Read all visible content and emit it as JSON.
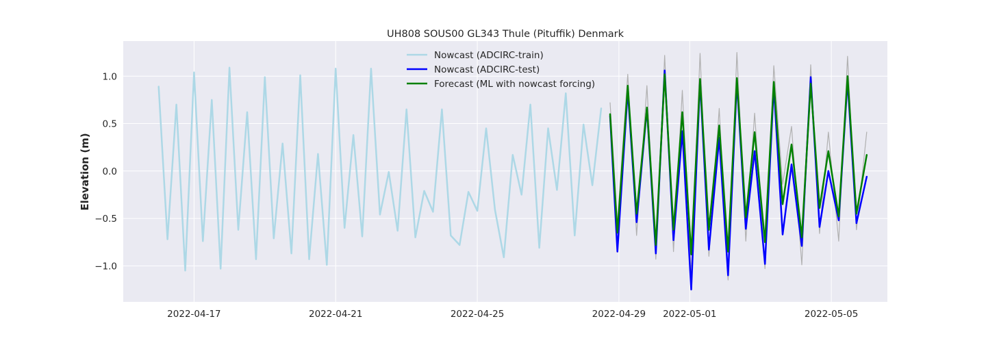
{
  "chart_data": {
    "type": "line",
    "title": "UH808 SOUS00 GL343 Thule (Pituffik) Denmark",
    "xlabel": "",
    "ylabel": "Elevation (m)",
    "xlim": [
      "2022-04-15T00:00",
      "2022-05-06T14:00"
    ],
    "ylim": [
      -1.38,
      1.37
    ],
    "grid": true,
    "legend_position": "top-center",
    "x_ticks": [
      "2022-04-17",
      "2022-04-21",
      "2022-04-25",
      "2022-04-29",
      "2022-05-01",
      "2022-05-05"
    ],
    "y_ticks": [
      -1.0,
      -0.5,
      0.0,
      0.5,
      1.0
    ],
    "y_tick_labels": [
      "−1.0",
      "−0.5",
      "0.0",
      "0.5",
      "1.0"
    ],
    "colors": {
      "background": "#eaeaf2",
      "grid": "#ffffff",
      "observed": "#b0b0b0",
      "train": "#add8e6",
      "test": "#0000ff",
      "forecast": "#008000"
    },
    "series": [
      {
        "name": "",
        "role": "observed",
        "x": [
          "2022-04-28T18:00",
          "2022-04-28T23:00",
          "2022-04-29T06:00",
          "2022-04-29T12:00",
          "2022-04-29T19:00",
          "2022-04-30T01:00",
          "2022-04-30T07:00",
          "2022-04-30T13:00",
          "2022-04-30T19:00",
          "2022-05-01T01:00",
          "2022-05-01T07:00",
          "2022-05-01T13:00",
          "2022-05-01T20:00",
          "2022-05-02T02:00",
          "2022-05-02T08:00",
          "2022-05-02T14:00",
          "2022-05-02T20:00",
          "2022-05-03T03:00",
          "2022-05-03T09:00",
          "2022-05-03T15:00",
          "2022-05-03T21:00",
          "2022-05-04T04:00",
          "2022-05-04T10:00",
          "2022-05-04T16:00",
          "2022-05-04T22:00",
          "2022-05-05T05:00",
          "2022-05-05T11:00",
          "2022-05-05T17:00",
          "2022-05-06T00:00"
        ],
        "y": [
          0.72,
          -0.55,
          1.02,
          -0.68,
          0.9,
          -0.93,
          1.22,
          -0.85,
          0.85,
          -1.08,
          1.24,
          -0.9,
          0.66,
          -1.15,
          1.25,
          -0.74,
          0.61,
          -1.03,
          1.11,
          -0.14,
          0.47,
          -0.99,
          1.12,
          -0.66,
          0.41,
          -0.74,
          1.21,
          -0.62,
          0.41
        ]
      },
      {
        "name": "Nowcast (ADCIRC-train)",
        "role": "train",
        "x": [
          "2022-04-16T00:00",
          "2022-04-16T06:00",
          "2022-04-16T12:00",
          "2022-04-16T18:00",
          "2022-04-17T00:00",
          "2022-04-17T06:00",
          "2022-04-17T12:00",
          "2022-04-17T18:00",
          "2022-04-18T00:00",
          "2022-04-18T06:00",
          "2022-04-18T12:00",
          "2022-04-18T18:00",
          "2022-04-19T00:00",
          "2022-04-19T06:00",
          "2022-04-19T12:00",
          "2022-04-19T18:00",
          "2022-04-20T00:00",
          "2022-04-20T06:00",
          "2022-04-20T12:00",
          "2022-04-20T18:00",
          "2022-04-21T00:00",
          "2022-04-21T06:00",
          "2022-04-21T12:00",
          "2022-04-21T18:00",
          "2022-04-22T00:00",
          "2022-04-22T06:00",
          "2022-04-22T12:00",
          "2022-04-22T18:00",
          "2022-04-23T00:00",
          "2022-04-23T06:00",
          "2022-04-23T12:00",
          "2022-04-23T18:00",
          "2022-04-24T00:00",
          "2022-04-24T06:00",
          "2022-04-24T12:00",
          "2022-04-24T18:00",
          "2022-04-25T00:00",
          "2022-04-25T06:00",
          "2022-04-25T12:00",
          "2022-04-25T18:00",
          "2022-04-26T00:00",
          "2022-04-26T06:00",
          "2022-04-26T12:00",
          "2022-04-26T18:00",
          "2022-04-27T00:00",
          "2022-04-27T06:00",
          "2022-04-27T12:00",
          "2022-04-27T18:00",
          "2022-04-28T00:00",
          "2022-04-28T06:00",
          "2022-04-28T12:00"
        ],
        "y": [
          0.89,
          -0.72,
          0.7,
          -1.05,
          1.04,
          -0.74,
          0.75,
          -1.03,
          1.09,
          -0.62,
          0.62,
          -0.93,
          0.99,
          -0.71,
          0.29,
          -0.87,
          1.01,
          -0.93,
          0.18,
          -0.99,
          1.08,
          -0.6,
          0.38,
          -0.69,
          1.08,
          -0.46,
          -0.01,
          -0.63,
          0.65,
          -0.7,
          -0.21,
          -0.43,
          0.65,
          -0.68,
          -0.78,
          -0.22,
          -0.42,
          0.45,
          -0.41,
          -0.91,
          0.17,
          -0.25,
          0.7,
          -0.81,
          0.45,
          -0.2,
          0.82,
          -0.68,
          0.49,
          -0.15,
          0.66
        ]
      },
      {
        "name": "Nowcast (ADCIRC-test)",
        "role": "test",
        "x": [
          "2022-04-28T18:00",
          "2022-04-28T23:00",
          "2022-04-29T06:00",
          "2022-04-29T12:00",
          "2022-04-29T19:00",
          "2022-04-30T01:00",
          "2022-04-30T07:00",
          "2022-04-30T13:00",
          "2022-04-30T19:00",
          "2022-05-01T01:00",
          "2022-05-01T07:00",
          "2022-05-01T13:00",
          "2022-05-01T20:00",
          "2022-05-02T02:00",
          "2022-05-02T08:00",
          "2022-05-02T14:00",
          "2022-05-02T20:00",
          "2022-05-03T03:00",
          "2022-05-03T09:00",
          "2022-05-03T15:00",
          "2022-05-03T21:00",
          "2022-05-04T04:00",
          "2022-05-04T10:00",
          "2022-05-04T16:00",
          "2022-05-04T22:00",
          "2022-05-05T05:00",
          "2022-05-05T11:00",
          "2022-05-05T17:00",
          "2022-05-06T00:00"
        ],
        "y": [
          0.58,
          -0.85,
          0.85,
          -0.54,
          0.66,
          -0.87,
          1.06,
          -0.73,
          0.42,
          -1.25,
          0.95,
          -0.83,
          0.35,
          -1.1,
          0.94,
          -0.61,
          0.21,
          -0.98,
          0.89,
          -0.67,
          0.07,
          -0.79,
          0.99,
          -0.59,
          0.0,
          -0.52,
          0.95,
          -0.55,
          -0.06
        ]
      },
      {
        "name": "Forecast (ML with nowcast forcing)",
        "role": "forecast",
        "x": [
          "2022-04-28T18:00",
          "2022-04-28T23:00",
          "2022-04-29T06:00",
          "2022-04-29T12:00",
          "2022-04-29T19:00",
          "2022-04-30T01:00",
          "2022-04-30T07:00",
          "2022-04-30T13:00",
          "2022-04-30T19:00",
          "2022-05-01T01:00",
          "2022-05-01T07:00",
          "2022-05-01T13:00",
          "2022-05-01T20:00",
          "2022-05-02T02:00",
          "2022-05-02T08:00",
          "2022-05-02T14:00",
          "2022-05-02T20:00",
          "2022-05-03T03:00",
          "2022-05-03T09:00",
          "2022-05-03T15:00",
          "2022-05-03T21:00",
          "2022-05-04T04:00",
          "2022-05-04T10:00",
          "2022-05-04T16:00",
          "2022-05-04T22:00",
          "2022-05-05T05:00",
          "2022-05-05T11:00",
          "2022-05-05T17:00",
          "2022-05-06T00:00"
        ],
        "y": [
          0.6,
          -0.65,
          0.9,
          -0.45,
          0.67,
          -0.78,
          1.02,
          -0.62,
          0.62,
          -0.88,
          0.97,
          -0.62,
          0.48,
          -0.85,
          0.98,
          -0.49,
          0.41,
          -0.75,
          0.94,
          -0.35,
          0.28,
          -0.7,
          0.92,
          -0.39,
          0.21,
          -0.48,
          1.0,
          -0.45,
          0.17
        ]
      }
    ]
  }
}
